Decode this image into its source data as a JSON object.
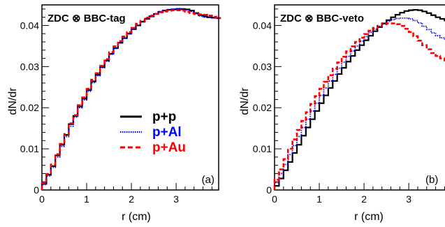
{
  "colors": {
    "pp": "#000000",
    "pAl": "#0000ff",
    "pAu": "#ff0000",
    "axis": "#000000"
  },
  "legend": {
    "entries": [
      {
        "label": "p+p",
        "color": "#000000",
        "style": "solid"
      },
      {
        "label": "p+Al",
        "color": "#0000ff",
        "style": "dotted"
      },
      {
        "label": "p+Au",
        "color": "#ff0000",
        "style": "dashed"
      }
    ],
    "placement": "left panel, center-right"
  },
  "chart_data": [
    {
      "type": "line",
      "title": "ZDC ⊗ BBC-tag",
      "panel_label": "(a)",
      "xlabel": "r (cm)",
      "ylabel": "dN/dr",
      "xlim": [
        0,
        3.95
      ],
      "ylim": [
        0,
        0.045
      ],
      "xticks": [
        "0",
        "1",
        "2",
        "3"
      ],
      "xtick_values": [
        0,
        1,
        2,
        3
      ],
      "yticks": [
        "0",
        "0.01",
        "0.02",
        "0.03",
        "0.04"
      ],
      "ytick_values": [
        0,
        0.01,
        0.02,
        0.03,
        0.04
      ],
      "grid": false,
      "bin_width": 0.1,
      "x_bin_edges_start": 0,
      "series": [
        {
          "name": "p+p",
          "color": "#000000",
          "style": "solid",
          "values": [
            0.0015,
            0.0037,
            0.0058,
            0.0084,
            0.011,
            0.0134,
            0.016,
            0.018,
            0.0203,
            0.0222,
            0.0243,
            0.0264,
            0.028,
            0.0299,
            0.0315,
            0.0331,
            0.0345,
            0.0358,
            0.0369,
            0.038,
            0.0391,
            0.04,
            0.0409,
            0.0416,
            0.0422,
            0.0428,
            0.0433,
            0.0436,
            0.0438,
            0.0439,
            0.044,
            0.044,
            0.0439,
            0.0436,
            0.043,
            0.0425,
            0.0422,
            0.042,
            0.0419,
            0.0418
          ]
        },
        {
          "name": "p+Al",
          "color": "#0000ff",
          "style": "dotted",
          "values": [
            0.0013,
            0.0034,
            0.0055,
            0.008,
            0.0106,
            0.013,
            0.0155,
            0.0177,
            0.02,
            0.0219,
            0.024,
            0.0261,
            0.0278,
            0.0297,
            0.0313,
            0.033,
            0.0344,
            0.0357,
            0.0369,
            0.038,
            0.0391,
            0.0401,
            0.041,
            0.0417,
            0.0423,
            0.0429,
            0.0434,
            0.0437,
            0.0439,
            0.044,
            0.0441,
            0.044,
            0.0438,
            0.0434,
            0.0428,
            0.0423,
            0.042,
            0.0419,
            0.0418,
            0.0417
          ]
        },
        {
          "name": "p+Au",
          "color": "#ff0000",
          "style": "dashed",
          "values": [
            0.0017,
            0.0039,
            0.0062,
            0.0087,
            0.0112,
            0.0136,
            0.0162,
            0.0182,
            0.0206,
            0.0225,
            0.0246,
            0.0268,
            0.0284,
            0.0302,
            0.0318,
            0.0335,
            0.0349,
            0.0362,
            0.0373,
            0.0384,
            0.0394,
            0.0404,
            0.0411,
            0.0419,
            0.0424,
            0.0428,
            0.0432,
            0.0434,
            0.0436,
            0.0437,
            0.0437,
            0.0436,
            0.0433,
            0.043,
            0.0428,
            0.0427,
            0.0426,
            0.0424,
            0.0421,
            0.0418
          ]
        }
      ]
    },
    {
      "type": "line",
      "title": "ZDC ⊗ BBC-veto",
      "panel_label": "(b)",
      "xlabel": "r (cm)",
      "ylabel": "dN/dr",
      "xlim": [
        0,
        3.95
      ],
      "ylim": [
        0,
        0.045
      ],
      "xticks": [
        "0",
        "1",
        "2",
        "3"
      ],
      "xtick_values": [
        0,
        1,
        2,
        3
      ],
      "yticks": [
        "0",
        "0.01",
        "0.02",
        "0.03",
        "0.04"
      ],
      "ytick_values": [
        0,
        0.01,
        0.02,
        0.03,
        0.04
      ],
      "grid": false,
      "bin_width": 0.1,
      "x_bin_edges_start": 0,
      "series": [
        {
          "name": "p+p",
          "color": "#000000",
          "style": "solid",
          "values": [
            0.001,
            0.0028,
            0.0048,
            0.0068,
            0.009,
            0.011,
            0.0132,
            0.0152,
            0.0172,
            0.0192,
            0.0211,
            0.023,
            0.0248,
            0.0265,
            0.0282,
            0.0297,
            0.0312,
            0.0326,
            0.034,
            0.0352,
            0.0364,
            0.0375,
            0.0386,
            0.0396,
            0.0405,
            0.0413,
            0.042,
            0.0426,
            0.0431,
            0.0435,
            0.0437,
            0.0438,
            0.0437,
            0.0434,
            0.043,
            0.0425,
            0.042,
            0.0416,
            0.0412,
            0.0408
          ]
        },
        {
          "name": "p+Al",
          "color": "#0000ff",
          "style": "dotted",
          "values": [
            0.0018,
            0.004,
            0.0062,
            0.0086,
            0.0108,
            0.013,
            0.0152,
            0.0172,
            0.0192,
            0.0211,
            0.023,
            0.0248,
            0.0265,
            0.0281,
            0.0296,
            0.0311,
            0.0325,
            0.0338,
            0.035,
            0.0362,
            0.0373,
            0.0383,
            0.0391,
            0.0398,
            0.0404,
            0.041,
            0.0414,
            0.0417,
            0.0418,
            0.0418,
            0.0416,
            0.0412,
            0.0406,
            0.0398,
            0.039,
            0.0382,
            0.0375,
            0.037,
            0.0365,
            0.036
          ]
        },
        {
          "name": "p+Au",
          "color": "#ff0000",
          "style": "dashed",
          "values": [
            0.0025,
            0.005,
            0.0075,
            0.01,
            0.0123,
            0.0146,
            0.0168,
            0.0189,
            0.0209,
            0.0228,
            0.0246,
            0.0263,
            0.0279,
            0.0295,
            0.031,
            0.0324,
            0.0337,
            0.0349,
            0.036,
            0.037,
            0.0379,
            0.0387,
            0.0394,
            0.0399,
            0.0403,
            0.0405,
            0.0405,
            0.0403,
            0.0399,
            0.0392,
            0.0384,
            0.0374,
            0.0363,
            0.0352,
            0.0342,
            0.0333,
            0.0326,
            0.032,
            0.0315,
            0.0312
          ]
        }
      ]
    }
  ]
}
